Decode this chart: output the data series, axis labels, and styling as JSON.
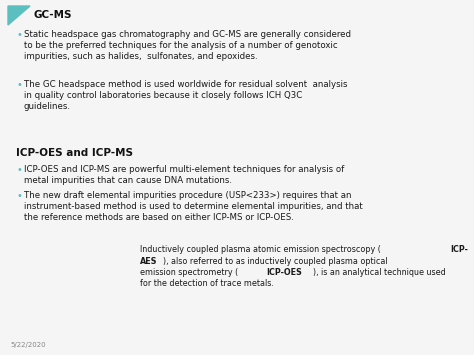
{
  "bg_color": "#f5f5f5",
  "triangle_color": "#5BBFBF",
  "title1": "GC-MS",
  "bullet1_1": "Static headspace gas chromatography and GC-MS are generally considered\nto be the preferred techniques for the analysis of a number of genotoxic\nimpurities, such as halides,  sulfonates, and epoxides.",
  "bullet1_2": "The GC headspace method is used worldwide for residual solvent  analysis\nin quality control laboratories because it closely follows ICH Q3C\nguidelines.",
  "title2": "ICP-OES and ICP-MS",
  "bullet2_1": "ICP-OES and ICP-MS are powerful multi-element techniques for analysis of\nmetal impurities that can cause DNA mutations.",
  "bullet2_2": "The new draft elemental impurities procedure (USP<233>) requires that an\ninstrument-based method is used to determine elemental impurities, and that\nthe reference methods are based on either ICP-MS or ICP-OES.",
  "date": "5/22/2020",
  "bullet_color": "#5BBFBF",
  "text_color": "#1a1a1a",
  "title_color": "#111111",
  "font_size_title": 7.5,
  "font_size_body": 6.2,
  "font_size_footnote": 5.8,
  "font_size_date": 5.0,
  "fn_line1_normal": "Inductively coupled plasma atomic emission spectroscopy (",
  "fn_line1_bold": "ICP-",
  "fn_line2_bold": "AES",
  "fn_line2_normal": "), also referred to as inductively coupled plasma optical",
  "fn_line3_normal1": "emission spectrometry (",
  "fn_line3_bold": "ICP-OES",
  "fn_line3_normal2": "), is an analytical technique used",
  "fn_line4_normal": "for the detection of trace metals."
}
